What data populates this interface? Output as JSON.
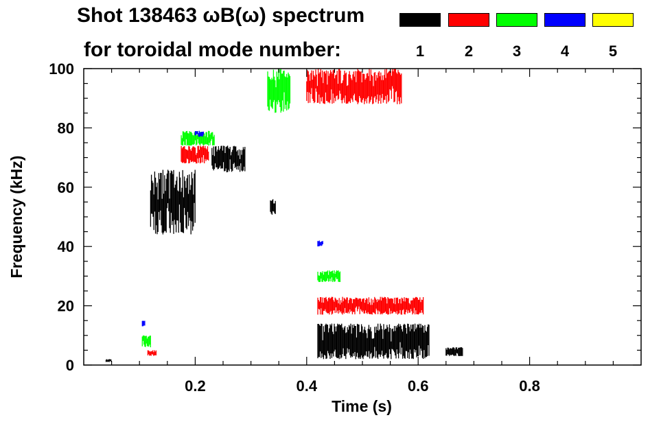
{
  "chart_data": {
    "type": "heatmap",
    "title_line1": "Shot 138463 ωB(ω) spectrum",
    "title_line2": "for toroidal mode number:",
    "xlabel": "Time (s)",
    "ylabel": "Frequency (kHz)",
    "xlim": [
      0.0,
      1.0
    ],
    "ylim": [
      0,
      100
    ],
    "x_ticks": [
      0.2,
      0.4,
      0.6,
      0.8
    ],
    "x_tick_labels": [
      "0.2",
      "0.4",
      "0.6",
      "0.8"
    ],
    "y_ticks": [
      0,
      20,
      40,
      60,
      80,
      100
    ],
    "y_tick_labels": [
      "0",
      "20",
      "40",
      "60",
      "80",
      "100"
    ],
    "legend": {
      "placement": "top-right",
      "entries": [
        {
          "label": "1",
          "color": "#000000"
        },
        {
          "label": "2",
          "color": "#ff0000"
        },
        {
          "label": "3",
          "color": "#00ff00"
        },
        {
          "label": "4",
          "color": "#0000ff"
        },
        {
          "label": "5",
          "color": "#ffff00"
        }
      ]
    },
    "series": [
      {
        "mode": "1",
        "color": "#000000",
        "regions": [
          {
            "t": [
              0.12,
              0.2
            ],
            "f": [
              44,
              66
            ]
          },
          {
            "t": [
              0.23,
              0.29
            ],
            "f": [
              65,
              74
            ]
          },
          {
            "t": [
              0.42,
              0.62
            ],
            "f": [
              2,
              14
            ]
          },
          {
            "t": [
              0.335,
              0.345
            ],
            "f": [
              50,
              56
            ]
          },
          {
            "t": [
              0.65,
              0.68
            ],
            "f": [
              3,
              6
            ]
          },
          {
            "t": [
              0.04,
              0.05
            ],
            "f": [
              1,
              2
            ]
          }
        ]
      },
      {
        "mode": "2",
        "color": "#ff0000",
        "regions": [
          {
            "t": [
              0.4,
              0.57
            ],
            "f": [
              88,
              100
            ]
          },
          {
            "t": [
              0.175,
              0.225
            ],
            "f": [
              68,
              74
            ]
          },
          {
            "t": [
              0.42,
              0.61
            ],
            "f": [
              17,
              23
            ]
          },
          {
            "t": [
              0.115,
              0.13
            ],
            "f": [
              3,
              5
            ]
          }
        ]
      },
      {
        "mode": "3",
        "color": "#00ff00",
        "regions": [
          {
            "t": [
              0.175,
              0.235
            ],
            "f": [
              74,
              79
            ]
          },
          {
            "t": [
              0.33,
              0.37
            ],
            "f": [
              85,
              100
            ]
          },
          {
            "t": [
              0.42,
              0.46
            ],
            "f": [
              28,
              32
            ]
          },
          {
            "t": [
              0.105,
              0.12
            ],
            "f": [
              6,
              10
            ]
          }
        ]
      },
      {
        "mode": "4",
        "color": "#0000ff",
        "regions": [
          {
            "t": [
              0.2,
              0.215
            ],
            "f": [
              77,
              79
            ]
          },
          {
            "t": [
              0.105,
              0.11
            ],
            "f": [
              13,
              15
            ]
          },
          {
            "t": [
              0.42,
              0.43
            ],
            "f": [
              40,
              42
            ]
          }
        ]
      },
      {
        "mode": "5",
        "color": "#ffff00",
        "regions": []
      }
    ]
  }
}
